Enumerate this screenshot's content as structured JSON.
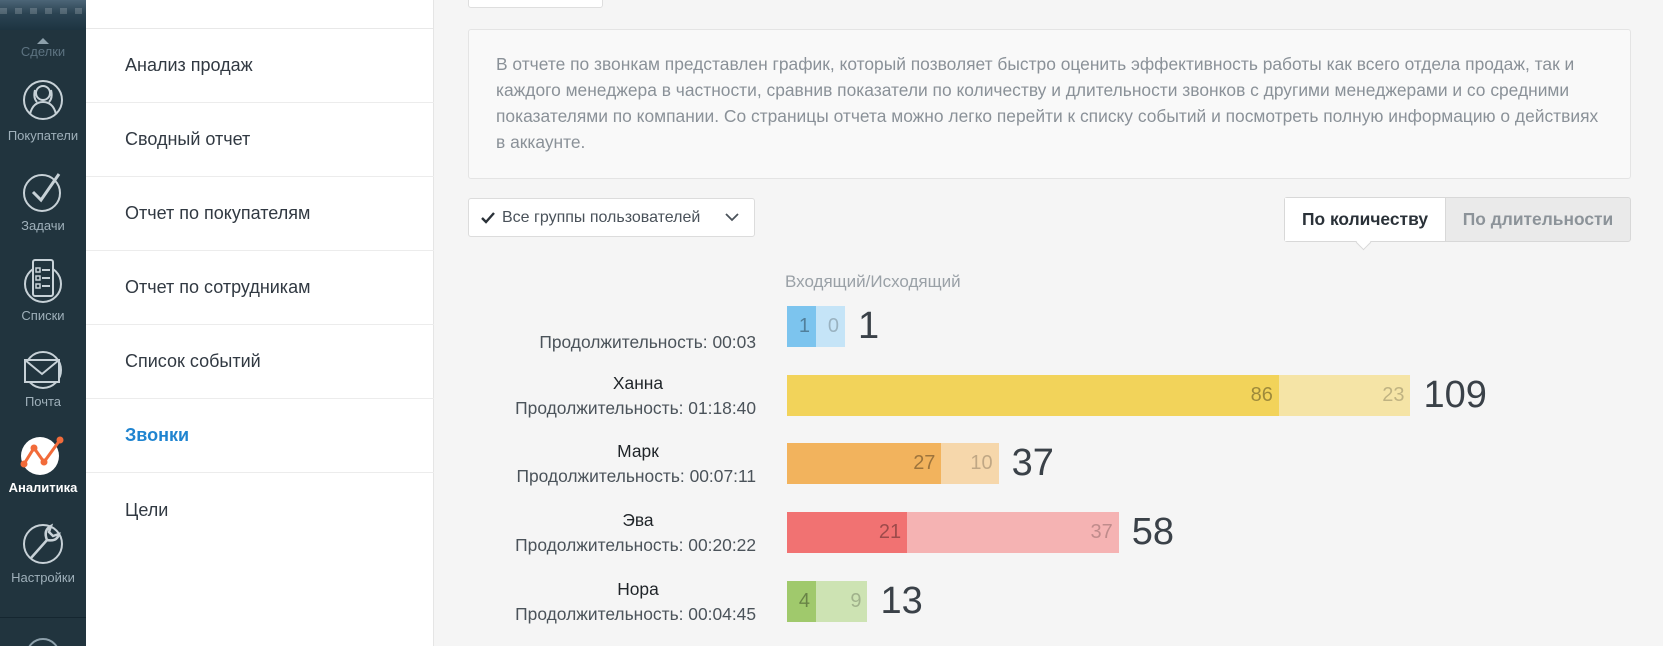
{
  "nav": {
    "top_label": "Сделки",
    "items": [
      {
        "label": "Покупатели",
        "icon": "buyers-icon"
      },
      {
        "label": "Задачи",
        "icon": "tasks-icon"
      },
      {
        "label": "Списки",
        "icon": "lists-icon"
      },
      {
        "label": "Почта",
        "icon": "mail-icon"
      },
      {
        "label": "Аналитика",
        "icon": "analytics-icon",
        "active": true
      },
      {
        "label": "Настройки",
        "icon": "settings-icon"
      }
    ]
  },
  "submenu": {
    "items": [
      {
        "label": "Анализ продаж"
      },
      {
        "label": "Сводный отчет"
      },
      {
        "label": "Отчет по покупателям"
      },
      {
        "label": "Отчет по сотрудникам"
      },
      {
        "label": "Список событий"
      },
      {
        "label": "Звонки",
        "active": true
      },
      {
        "label": "Цели"
      }
    ]
  },
  "description": "В отчете по звонкам представлен график, который позволяет быстро оценить эффективность работы как всего отдела продаж, так и каждого менеджера в частности, сравнив показатели по количеству и длительности звонков с другими менеджерами и со средними показателями по компании. Со страницы отчета можно легко перейти к списку событий и посмотреть полную информацию о действиях в аккаунте.",
  "filter": {
    "label": "Все группы пользователей",
    "checked": true
  },
  "toggle": {
    "by_count": "По количеству",
    "by_duration": "По длительности",
    "active": "by_count"
  },
  "chart_data": {
    "type": "bar",
    "stacked": true,
    "orientation": "horizontal",
    "column_header": "Входящий/Исходящий",
    "rows": [
      {
        "name": "",
        "duration": "Продолжительность: 00:03",
        "incoming": 1,
        "outgoing": 0,
        "total": 1,
        "color": "#7cc4ee",
        "color_light": "#c5e4f7"
      },
      {
        "name": "Ханна",
        "duration": "Продолжительность: 01:18:40",
        "incoming": 86,
        "outgoing": 23,
        "total": 109,
        "color": "#f2d35a",
        "color_light": "#f5e4a6"
      },
      {
        "name": "Марк",
        "duration": "Продолжительность: 00:07:11",
        "incoming": 27,
        "outgoing": 10,
        "total": 37,
        "color": "#f2b35d",
        "color_light": "#f6d7ab"
      },
      {
        "name": "Эва",
        "duration": "Продолжительность: 00:20:22",
        "incoming": 21,
        "outgoing": 37,
        "total": 58,
        "color": "#f17272",
        "color_light": "#f5b3b3"
      },
      {
        "name": "Нора",
        "duration": "Продолжительность: 00:04:45",
        "incoming": 4,
        "outgoing": 9,
        "total": 13,
        "color": "#a0c96c",
        "color_light": "#cde3b3"
      }
    ]
  }
}
